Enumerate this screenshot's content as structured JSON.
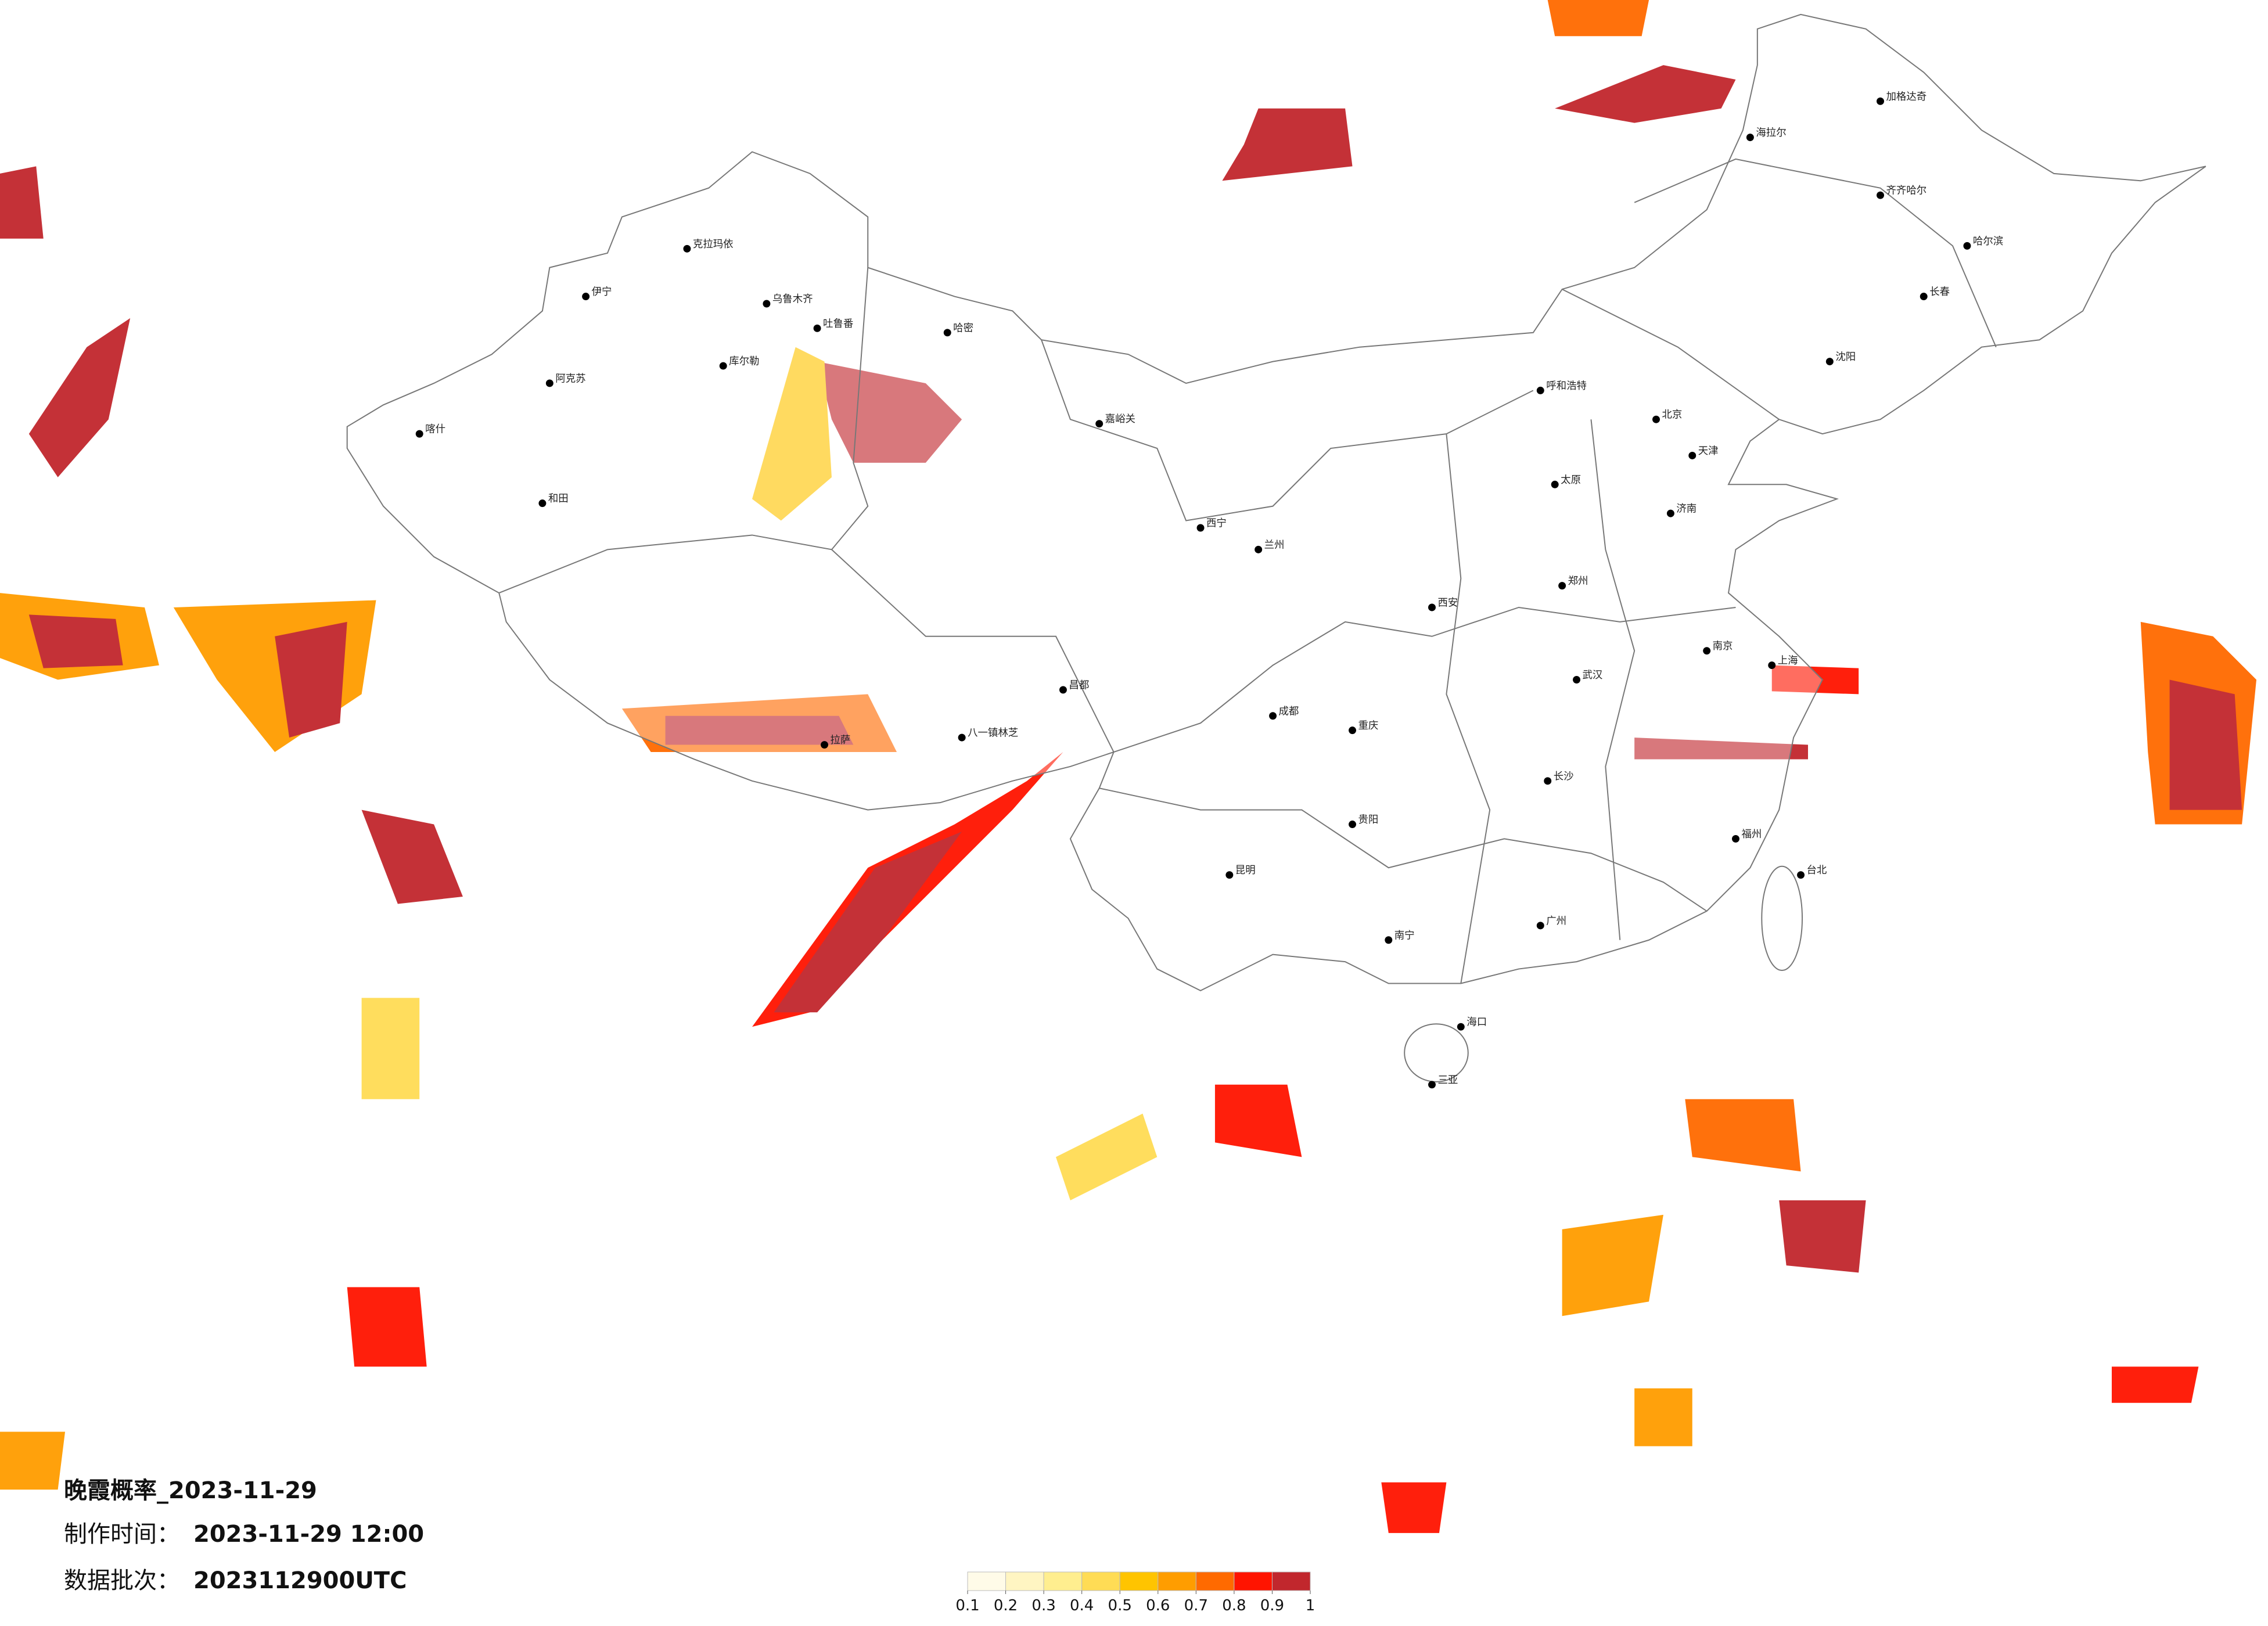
{
  "title": "晚霞概率_2023-11-29",
  "make_time": {
    "label": "制作时间：",
    "value": "2023-11-29 12:00"
  },
  "data_batch": {
    "label": "数据批次：",
    "value": "2023112900UTC"
  },
  "legend": {
    "colors": [
      "#fffbe8",
      "#fff5c2",
      "#ffee8f",
      "#ffdc55",
      "#ffc400",
      "#ff9d00",
      "#ff6a00",
      "#ff1400",
      "#c1272d"
    ],
    "ticks": [
      0.1,
      0.2,
      0.3,
      0.4,
      0.5,
      0.6,
      0.7,
      0.8,
      0.9,
      1
    ]
  },
  "cities": [
    "克拉玛依",
    "伊宁",
    "乌鲁木齐",
    "吐鲁番",
    "哈密",
    "库尔勒",
    "阿克苏",
    "喀什",
    "和田",
    "嘉峪关",
    "西宁",
    "兰州",
    "拉萨",
    "八一镇林芝",
    "昌都",
    "成都",
    "重庆",
    "昆明",
    "贵阳",
    "南宁",
    "广州",
    "长沙",
    "武汉",
    "上海",
    "南京",
    "北京",
    "天津",
    "沈阳",
    "长春",
    "哈尔滨",
    "呼和浩特",
    "太原",
    "济南",
    "郑州",
    "西安",
    "福州",
    "台北",
    "海口",
    "三亚",
    "齐齐哈尔",
    "海拉尔",
    "加格达奇"
  ]
}
